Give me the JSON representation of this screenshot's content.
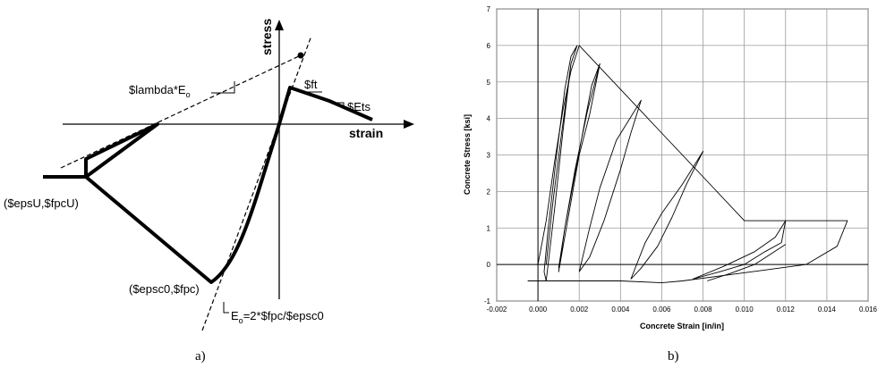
{
  "panel_a": {
    "caption": "a)",
    "stress_label": "stress",
    "strain_label": "strain",
    "lambda_label": "$lambda*E",
    "lambda_sub": "o",
    "ft_label": "$ft",
    "ets_label": "$Ets",
    "epsu_label": "($epsU,$fpcU)",
    "epsc0_label": "($epsc0,$fpc)",
    "e0_main": "E",
    "e0_sub": "o",
    "e0_rest": "=2*$fpc/$epsc0"
  },
  "panel_b": {
    "caption": "b)"
  },
  "chart_data": {
    "type": "line",
    "title": "",
    "xlabel": "Concrete Strain [in/in]",
    "ylabel": "Concrete Stress [ksi]",
    "xlim": [
      -0.002,
      0.016
    ],
    "ylim": [
      -1,
      7
    ],
    "xticks": [
      "-0.002",
      "0.000",
      "0.002",
      "0.004",
      "0.006",
      "0.008",
      "0.010",
      "0.012",
      "0.014",
      "0.016"
    ],
    "yticks": [
      "-1",
      "0",
      "1",
      "2",
      "3",
      "4",
      "5",
      "6",
      "7"
    ],
    "grid": true,
    "series": [
      {
        "name": "",
        "x": [
          0,
          0.0004,
          0.0008,
          0.0012,
          0.0016,
          0.002,
          0.004,
          0.006,
          0.008,
          0.01,
          0.012,
          0.015,
          0.0145,
          0.013,
          0.011,
          0.009,
          0.007,
          0.006,
          0.004,
          0.001,
          0.0003,
          -0.0005
        ],
        "y": [
          0,
          1.2,
          2.8,
          4.2,
          5.3,
          6.0,
          4.8,
          3.6,
          2.4,
          1.2,
          1.2,
          1.2,
          0.5,
          0.0,
          -0.15,
          -0.3,
          -0.45,
          -0.5,
          -0.45,
          -0.45,
          -0.45,
          -0.45
        ]
      },
      {
        "name": "",
        "x": [
          0.0004,
          0.0007,
          0.0011,
          0.0016,
          0.0019,
          0.0016,
          0.0013,
          0.0009,
          0.0005,
          0.0003,
          0.0004,
          0.0008,
          0.0012,
          0.0016
        ],
        "y": [
          0,
          1.6,
          3.4,
          5.5,
          6.0,
          5.7,
          4.8,
          3.0,
          1.0,
          -0.2,
          -0.45,
          1.5,
          3.6,
          5.5
        ]
      },
      {
        "name": "",
        "x": [
          0.001,
          0.0013,
          0.0018,
          0.0024,
          0.003,
          0.0026,
          0.0023,
          0.0018,
          0.0013,
          0.001,
          0.0015,
          0.002,
          0.0025,
          0.003
        ],
        "y": [
          -0.1,
          1.0,
          2.6,
          4.2,
          5.5,
          4.9,
          4.0,
          2.5,
          1.0,
          -0.2,
          1.4,
          3.0,
          4.1,
          5.5
        ]
      },
      {
        "name": "",
        "x": [
          0.002,
          0.0025,
          0.003,
          0.0038,
          0.005,
          0.0045,
          0.004,
          0.0032,
          0.0025,
          0.002
        ],
        "y": [
          -0.2,
          1.0,
          2.1,
          3.4,
          4.5,
          3.6,
          2.6,
          1.2,
          0.2,
          -0.2
        ]
      },
      {
        "name": "",
        "x": [
          0.0045,
          0.0052,
          0.006,
          0.007,
          0.008,
          0.0072,
          0.0065,
          0.0058,
          0.005,
          0.0045
        ],
        "y": [
          -0.4,
          0.6,
          1.4,
          2.2,
          3.1,
          2.2,
          1.3,
          0.5,
          -0.1,
          -0.4
        ]
      },
      {
        "name": "",
        "x": [
          0.0075,
          0.009,
          0.0105,
          0.0115,
          0.012,
          0.0118,
          0.011,
          0.01,
          0.0088,
          0.0075
        ],
        "y": [
          -0.4,
          -0.05,
          0.35,
          0.75,
          1.2,
          0.6,
          0.35,
          0.0,
          -0.2,
          -0.4
        ]
      },
      {
        "name": "",
        "x": [
          0.0082,
          0.0093,
          0.0105,
          0.012
        ],
        "y": [
          -0.45,
          -0.25,
          0.0,
          0.55
        ]
      }
    ]
  }
}
